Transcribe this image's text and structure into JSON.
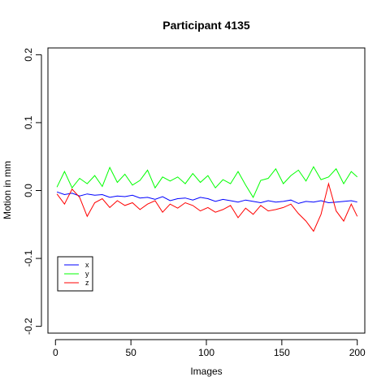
{
  "chart_data": {
    "type": "line",
    "title": "Participant 4135",
    "xlabel": "Images",
    "ylabel": "Motion in mm",
    "xlim": [
      -5,
      205
    ],
    "ylim": [
      -0.21,
      0.21
    ],
    "xticks": [
      0,
      50,
      100,
      150,
      200
    ],
    "xtick_labels": [
      "0",
      "50",
      "100",
      "150",
      "200"
    ],
    "yticks": [
      -0.2,
      -0.1,
      0.0,
      0.1,
      0.2
    ],
    "ytick_labels": [
      "-0.2",
      "-0.1",
      "0.0",
      "0.1",
      "0.2"
    ],
    "grid": false,
    "legend_position": "bottom-left",
    "series": [
      {
        "name": "x",
        "color": "#0000ff",
        "x": [
          1,
          6,
          11,
          16,
          21,
          26,
          31,
          36,
          41,
          46,
          51,
          56,
          61,
          66,
          71,
          76,
          81,
          86,
          91,
          96,
          101,
          106,
          111,
          116,
          121,
          126,
          131,
          136,
          141,
          146,
          151,
          156,
          161,
          166,
          171,
          176,
          181,
          186,
          191,
          196,
          200
        ],
        "values": [
          -0.002,
          -0.006,
          -0.004,
          -0.008,
          -0.005,
          -0.007,
          -0.006,
          -0.01,
          -0.008,
          -0.009,
          -0.007,
          -0.011,
          -0.01,
          -0.013,
          -0.009,
          -0.015,
          -0.012,
          -0.011,
          -0.014,
          -0.01,
          -0.012,
          -0.016,
          -0.013,
          -0.015,
          -0.017,
          -0.014,
          -0.016,
          -0.018,
          -0.015,
          -0.017,
          -0.016,
          -0.014,
          -0.019,
          -0.016,
          -0.017,
          -0.015,
          -0.018,
          -0.017,
          -0.016,
          -0.015,
          -0.017
        ]
      },
      {
        "name": "y",
        "color": "#00ff00",
        "x": [
          1,
          6,
          11,
          16,
          21,
          26,
          31,
          36,
          41,
          46,
          51,
          56,
          61,
          66,
          71,
          76,
          81,
          86,
          91,
          96,
          101,
          106,
          111,
          116,
          121,
          126,
          131,
          136,
          141,
          146,
          151,
          156,
          161,
          166,
          171,
          176,
          181,
          186,
          191,
          196,
          200
        ],
        "values": [
          0.005,
          0.028,
          0.004,
          0.018,
          0.01,
          0.022,
          0.006,
          0.034,
          0.012,
          0.024,
          0.008,
          0.015,
          0.03,
          0.004,
          0.02,
          0.014,
          0.02,
          0.01,
          0.025,
          0.012,
          0.022,
          0.004,
          0.016,
          0.01,
          0.028,
          0.008,
          -0.01,
          0.015,
          0.018,
          0.032,
          0.01,
          0.022,
          0.03,
          0.014,
          0.035,
          0.016,
          0.02,
          0.032,
          0.01,
          0.028,
          0.02
        ]
      },
      {
        "name": "z",
        "color": "#ff0000",
        "x": [
          1,
          6,
          11,
          16,
          21,
          26,
          31,
          36,
          41,
          46,
          51,
          56,
          61,
          66,
          71,
          76,
          81,
          86,
          91,
          96,
          101,
          106,
          111,
          116,
          121,
          126,
          131,
          136,
          141,
          146,
          151,
          156,
          161,
          166,
          171,
          176,
          181,
          186,
          191,
          196,
          200
        ],
        "values": [
          -0.005,
          -0.02,
          0.002,
          -0.01,
          -0.038,
          -0.018,
          -0.012,
          -0.025,
          -0.015,
          -0.022,
          -0.018,
          -0.028,
          -0.02,
          -0.015,
          -0.032,
          -0.02,
          -0.026,
          -0.018,
          -0.022,
          -0.03,
          -0.025,
          -0.032,
          -0.028,
          -0.022,
          -0.04,
          -0.026,
          -0.035,
          -0.022,
          -0.03,
          -0.028,
          -0.025,
          -0.02,
          -0.034,
          -0.045,
          -0.06,
          -0.035,
          0.01,
          -0.03,
          -0.045,
          -0.02,
          -0.038
        ]
      }
    ]
  }
}
